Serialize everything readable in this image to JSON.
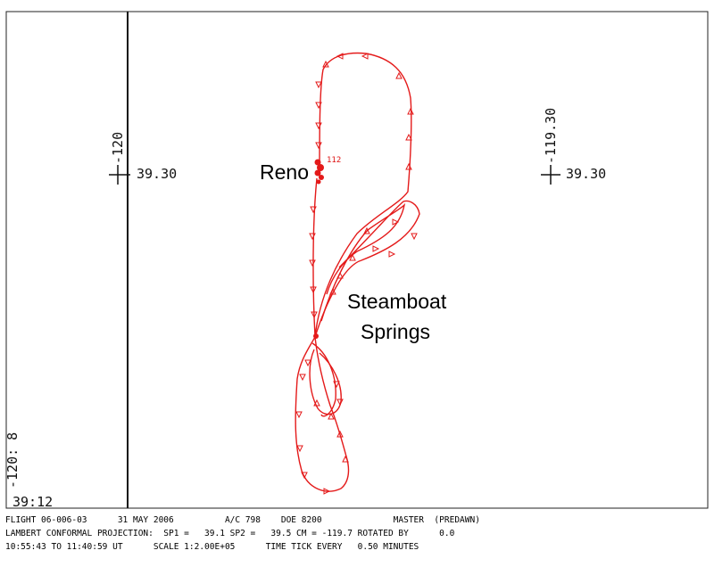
{
  "map": {
    "grid_labels": {
      "left_lon": "-120",
      "right_lon": "-119.30",
      "left_lat": "39.30",
      "right_lat": "39.30",
      "corner_lon": "-120: 8",
      "corner_lat": "39:12"
    },
    "places": {
      "reno": "Reno",
      "steamboat_line1": "Steamboat",
      "steamboat_line2": "Springs"
    },
    "time_marker": "112",
    "track_color": "#e41a1a"
  },
  "footer": {
    "line1": "FLIGHT 06-006-03      31 MAY 2006          A/C 798    DOE 8200              MASTER  (PREDAWN)",
    "line2": "LAMBERT CONFORMAL PROJECTION:  SP1 =   39.1 SP2 =   39.5 CM = -119.7 ROTATED BY      0.0",
    "line3": "10:55:43 TO 11:40:59 UT      SCALE 1:2.00E+05      TIME TICK EVERY   0.50 MINUTES"
  }
}
